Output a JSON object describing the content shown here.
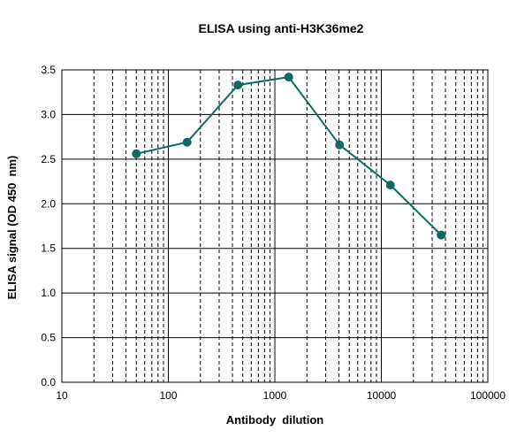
{
  "chart_data": {
    "type": "line",
    "title": "ELISA using anti-H3K36me2",
    "xlabel": "Antibody  dilution",
    "ylabel": "ELISA signal (OD 450  nm)",
    "x_scale": "log",
    "xlim": [
      10,
      100000
    ],
    "ylim": [
      0,
      3.5
    ],
    "x_ticks": [
      "10",
      "100",
      "1000",
      "10000",
      "100000"
    ],
    "y_ticks": [
      "0.0",
      "0.5",
      "1.0",
      "1.5",
      "2.0",
      "2.5",
      "3.0",
      "3.5"
    ],
    "grid": true,
    "legend": "none",
    "color": "#0e6b62",
    "series": [
      {
        "x": [
          50,
          150,
          450,
          1350,
          4050,
          12150,
          36450
        ],
        "y": [
          2.56,
          2.69,
          3.33,
          3.42,
          2.66,
          2.21,
          1.65
        ]
      }
    ]
  }
}
